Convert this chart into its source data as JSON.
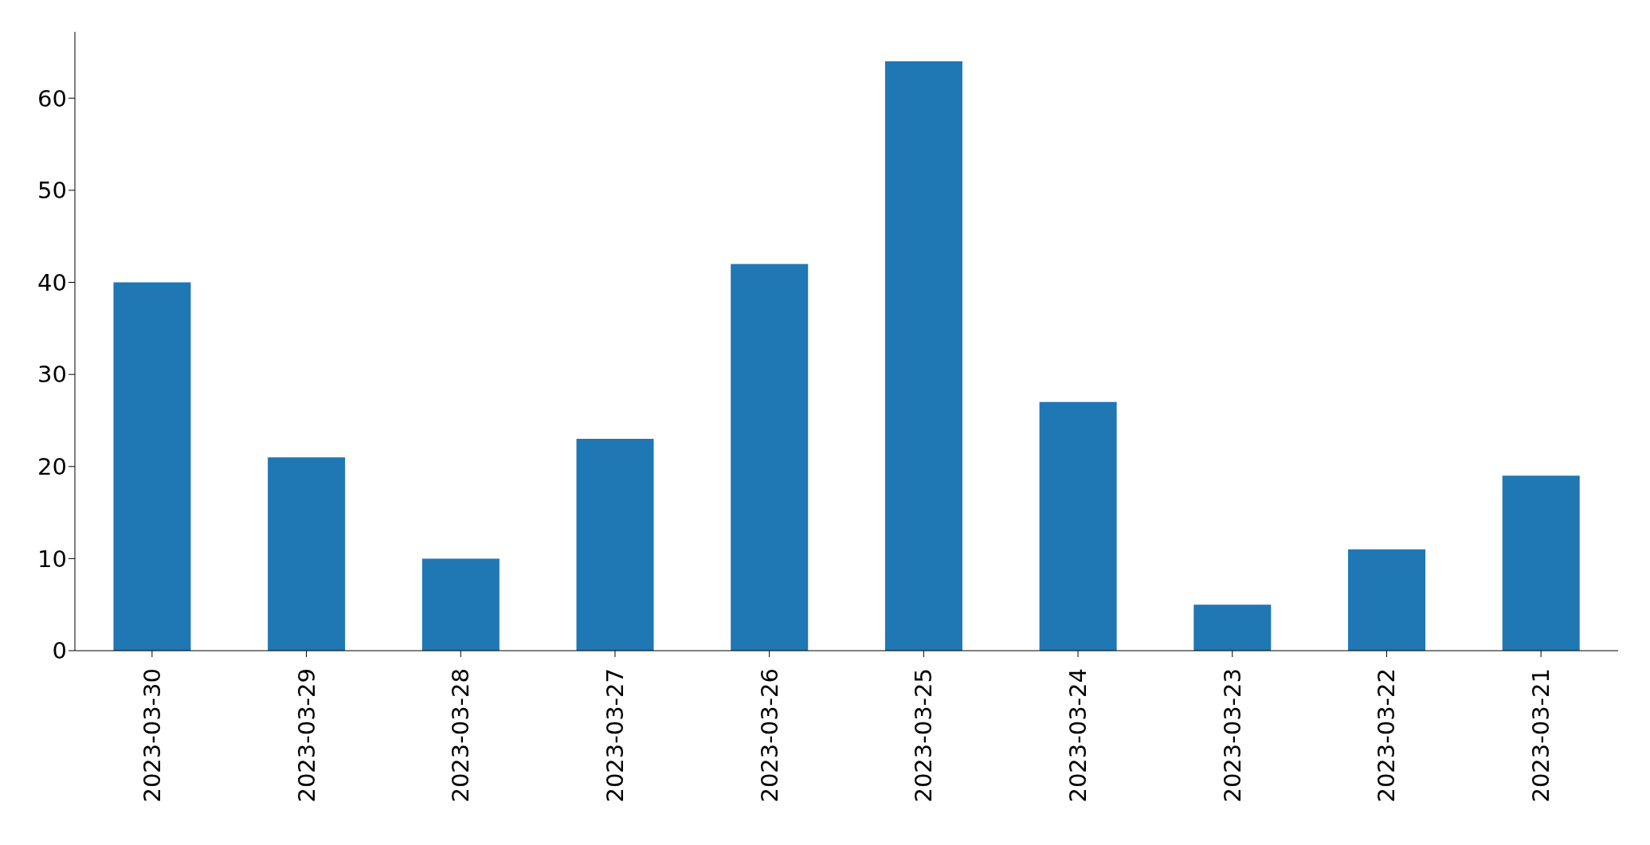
{
  "chart_data": {
    "type": "bar",
    "categories": [
      "2023-03-30",
      "2023-03-29",
      "2023-03-28",
      "2023-03-27",
      "2023-03-26",
      "2023-03-25",
      "2023-03-24",
      "2023-03-23",
      "2023-03-22",
      "2023-03-21"
    ],
    "values": [
      40,
      21,
      10,
      23,
      42,
      64,
      27,
      5,
      11,
      19
    ],
    "color": "#1f77b4",
    "ylim": [
      0,
      67.2
    ],
    "yticks": [
      0,
      10,
      20,
      30,
      40,
      50,
      60
    ]
  }
}
